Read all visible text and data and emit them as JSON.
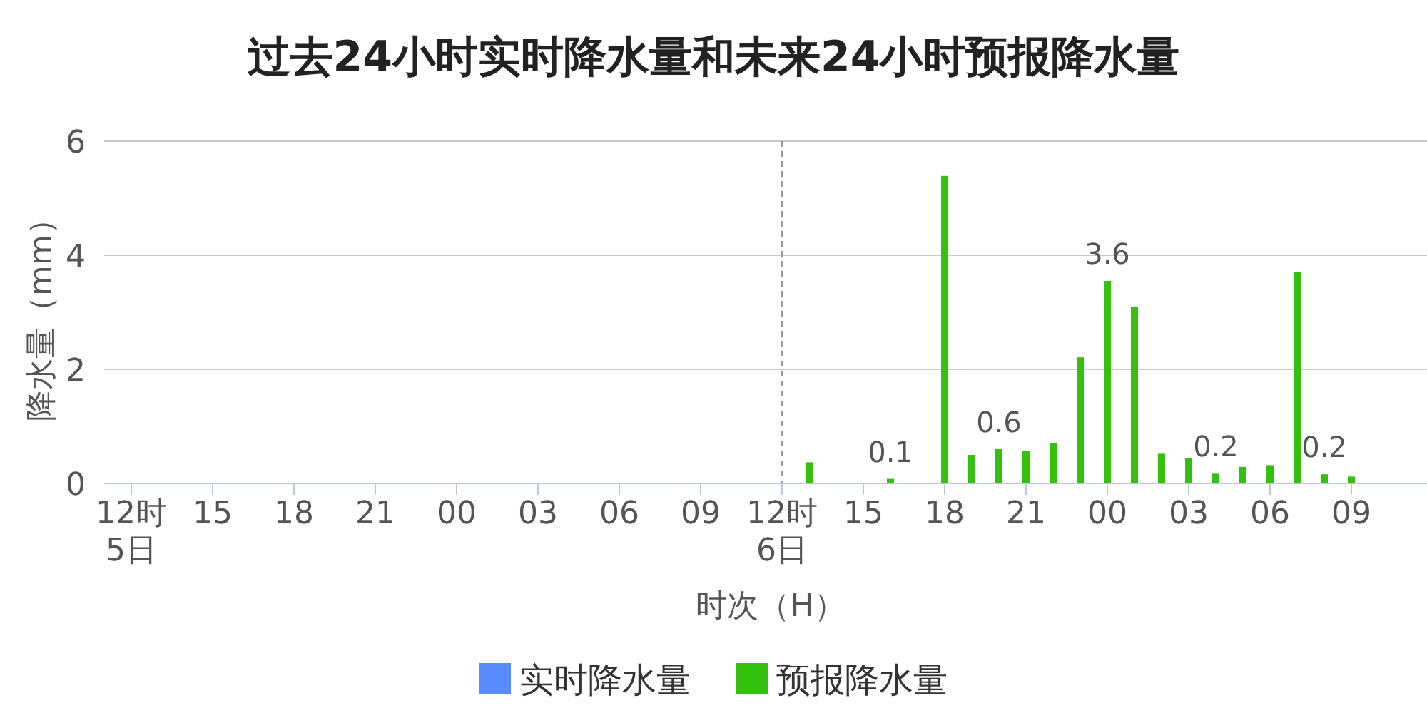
{
  "chart_data": {
    "type": "bar",
    "title": "过去24小时实时降水量和未来24小时预报降水量",
    "xlabel": "时次（H）",
    "ylabel": "降水量（mm）",
    "categories": [
      "12时\n5日",
      null,
      null,
      "15",
      null,
      null,
      "18",
      null,
      null,
      "21",
      null,
      null,
      "00",
      null,
      null,
      "03",
      null,
      null,
      "06",
      null,
      null,
      "09",
      null,
      null,
      "12时\n6日",
      null,
      null,
      "15",
      null,
      null,
      "18",
      null,
      null,
      "21",
      null,
      null,
      "00",
      null,
      null,
      "03",
      null,
      null,
      "06",
      null,
      null,
      "09",
      null,
      null
    ],
    "series": [
      {
        "name": "实时降水量",
        "color": "#5b8cff",
        "values": [
          0,
          0,
          0,
          0,
          0,
          0,
          0,
          0,
          0,
          0,
          0,
          0,
          0,
          0,
          0,
          0,
          0,
          0,
          0,
          0,
          0,
          0,
          0,
          0,
          0,
          null,
          null,
          null,
          null,
          null,
          null,
          null,
          null,
          null,
          null,
          null,
          null,
          null,
          null,
          null,
          null,
          null,
          null,
          null,
          null,
          null,
          null,
          null
        ]
      },
      {
        "name": "预报降水量",
        "color": "#33c10e",
        "values": [
          null,
          null,
          null,
          null,
          null,
          null,
          null,
          null,
          null,
          null,
          null,
          null,
          null,
          null,
          null,
          null,
          null,
          null,
          null,
          null,
          null,
          null,
          null,
          null,
          null,
          0.37,
          0,
          0,
          0.08,
          0,
          5.39,
          0.5,
          0.6,
          0.57,
          0.7,
          2.21,
          3.55,
          3.1,
          0.52,
          0.45,
          0.17,
          0.29,
          0.32,
          3.7,
          0.16,
          0.12,
          null,
          null
        ],
        "value_labels": [
          null,
          null,
          null,
          null,
          null,
          null,
          null,
          null,
          null,
          null,
          null,
          null,
          null,
          null,
          null,
          null,
          null,
          null,
          null,
          null,
          null,
          null,
          null,
          null,
          null,
          null,
          null,
          null,
          "0.1",
          null,
          null,
          null,
          "0.6",
          null,
          null,
          null,
          "3.6",
          null,
          null,
          null,
          "0.2",
          null,
          null,
          null,
          "0.2",
          null,
          null,
          null
        ]
      }
    ],
    "ylim": [
      0,
      6
    ],
    "yticks": [
      0,
      2,
      4,
      6
    ],
    "grid": "y",
    "legend": "bottom",
    "ref_lines": [
      {
        "axis": "x",
        "value": "12时\n6日",
        "color": "#999999",
        "line_style": "dashed"
      }
    ]
  }
}
